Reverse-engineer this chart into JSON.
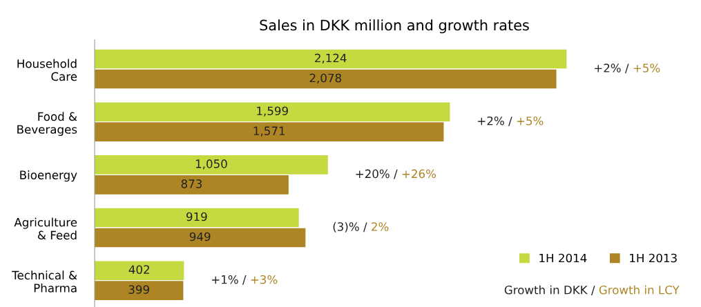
{
  "chart_data": {
    "type": "bar",
    "orientation": "horizontal",
    "title": "Sales in DKK million and growth rates",
    "categories": [
      "Household\nCare",
      "Food &\nBeverages",
      "Bioenergy",
      "Agriculture\n& Feed",
      "Technical &\nPharma"
    ],
    "series": [
      {
        "name": "1H 2014",
        "color": "#c5d941",
        "values": [
          2124,
          1599,
          1050,
          919,
          402
        ],
        "value_labels": [
          "2,124",
          "1,599",
          "1,050",
          "919",
          "402"
        ]
      },
      {
        "name": "1H 2013",
        "color": "#ae8524",
        "values": [
          2078,
          1571,
          873,
          949,
          399
        ],
        "value_labels": [
          "2,078",
          "1,571",
          "873",
          "949",
          "399"
        ]
      }
    ],
    "legend": "bottom right",
    "tick_labels": "y",
    "annotations": [
      "+2% /",
      "+5%",
      "+2% /",
      "+5%",
      "+20% /",
      "+26%",
      "(3)% /",
      "2%",
      "+1% /",
      "+3%",
      "Growth in DKK /",
      "Growth in LCY"
    ]
  }
}
